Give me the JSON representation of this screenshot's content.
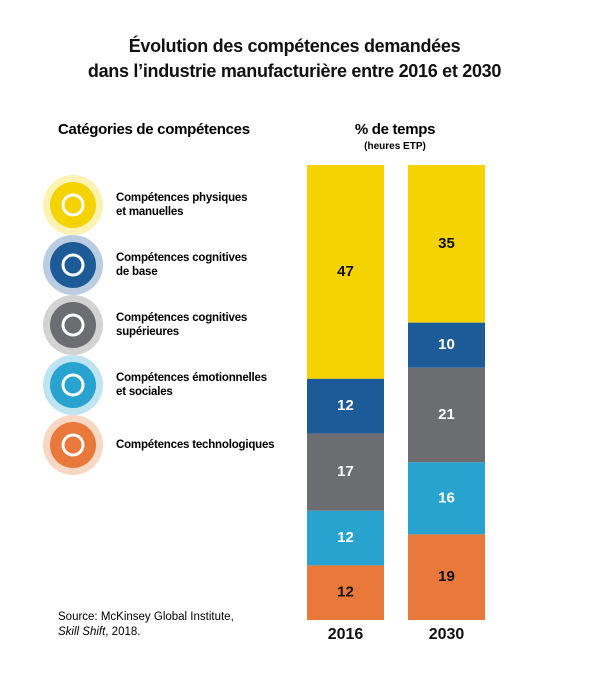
{
  "chart_data": {
    "type": "stacked-bar",
    "title": "Évolution des compétences demandées\ndans l’industrie manufacturière entre 2016 et 2030",
    "legend_title": "Catégories de compétences",
    "value_title": "% de temps",
    "value_subtitle": "(heures ETP)",
    "categories": [
      "2016",
      "2030"
    ],
    "series": [
      {
        "name": "Compétences physiques\net manuelles",
        "color": "#f5d300",
        "values": [
          47,
          35
        ]
      },
      {
        "name": "Compétences cognitives\nde base",
        "color": "#1d5a98",
        "values": [
          12,
          10
        ]
      },
      {
        "name": "Compétences cognitives\nsupérieures",
        "color": "#6c6d70",
        "values": [
          17,
          21
        ]
      },
      {
        "name": "Compétences émotionnelles\net sociales",
        "color": "#28a3cf",
        "values": [
          12,
          16
        ]
      },
      {
        "name": "Compétences technologiques",
        "color": "#e9793a",
        "values": [
          12,
          19
        ]
      }
    ],
    "source_prefix": "Source: McKinsey Global Institute,",
    "source_title": "Skill Shift",
    "source_suffix": ", 2018."
  }
}
